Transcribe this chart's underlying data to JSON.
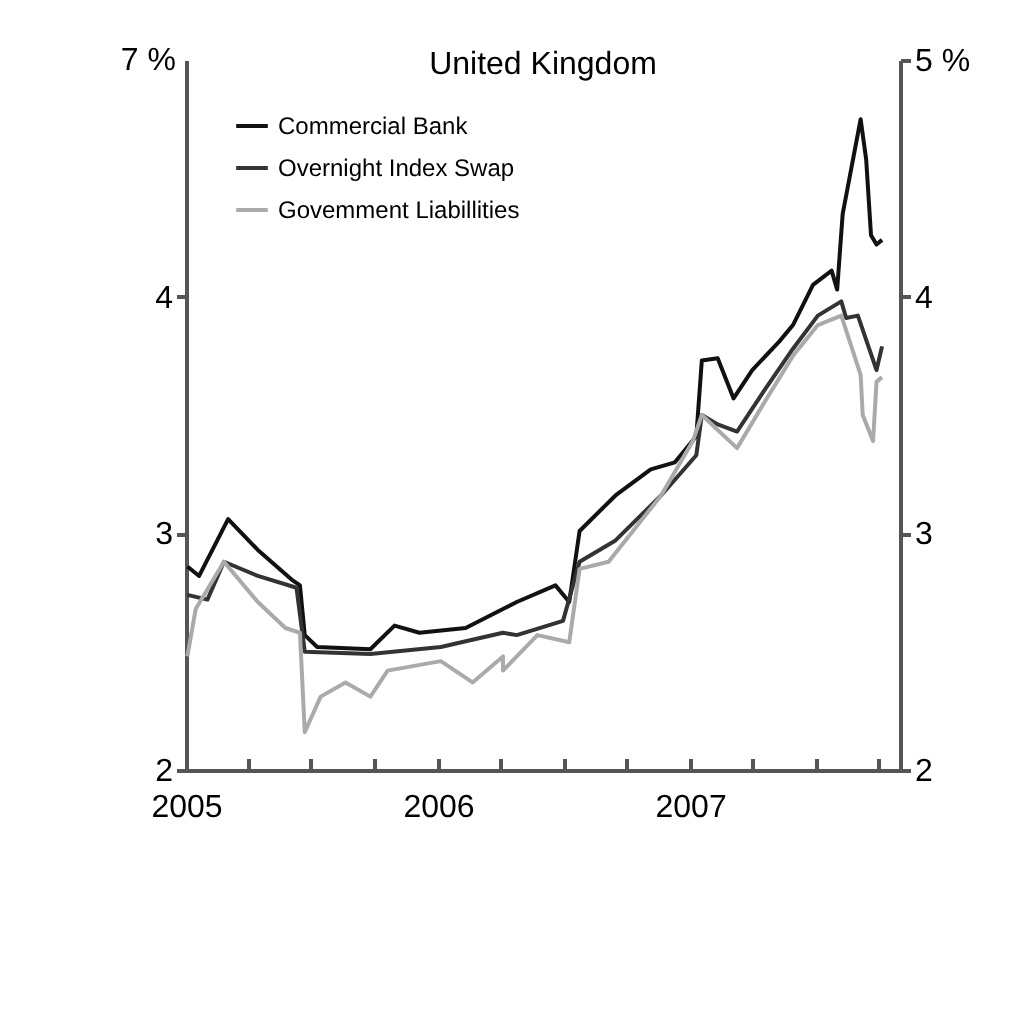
{
  "chart_data": {
    "type": "line",
    "title": "United Kingdom",
    "xlim": [
      "2005-01-01",
      "2007-11-01"
    ],
    "xticks": [
      {
        "value": "2005-01-01",
        "label": "2005"
      },
      {
        "value": "2005-04-01",
        "label": null
      },
      {
        "value": "2005-07-01",
        "label": null
      },
      {
        "value": "2005-10-01",
        "label": null
      },
      {
        "value": "2006-01-01",
        "label": "2006"
      },
      {
        "value": "2006-04-01",
        "label": null
      },
      {
        "value": "2006-07-01",
        "label": null
      },
      {
        "value": "2006-10-01",
        "label": null
      },
      {
        "value": "2007-01-01",
        "label": "2007"
      },
      {
        "value": "2007-04-01",
        "label": null
      },
      {
        "value": "2007-07-01",
        "label": null
      },
      {
        "value": "2007-10-01",
        "label": null
      }
    ],
    "ylim": [
      2,
      5
    ],
    "yticks": [
      2,
      3,
      4
    ],
    "annotations": [
      "7 %"
    ],
    "y2lim": [
      2,
      5
    ],
    "y2ticks": [
      2,
      3,
      4,
      {
        "value": 5,
        "label": "5 %"
      }
    ],
    "grid": false,
    "legend": "top left",
    "series": [
      {
        "name": "Commercial Bank",
        "color": "#111111",
        "x": [
          "2005-01-03",
          "2005-01-20",
          "2005-03-03",
          "2005-04-15",
          "2005-06-05",
          "2005-06-15",
          "2005-06-22",
          "2005-07-10",
          "2005-09-25",
          "2005-10-30",
          "2005-12-05",
          "2006-02-10",
          "2006-04-05",
          "2006-04-25",
          "2006-06-20",
          "2006-07-10",
          "2006-07-25",
          "2006-09-15",
          "2006-11-05",
          "2006-12-10",
          "2007-01-10",
          "2007-01-18",
          "2007-02-10",
          "2007-03-05",
          "2007-04-01",
          "2007-05-10",
          "2007-05-30",
          "2007-06-28",
          "2007-07-25",
          "2007-08-02",
          "2007-08-10",
          "2007-09-05",
          "2007-09-13",
          "2007-09-20",
          "2007-09-28",
          "2007-10-06"
        ],
        "values": [
          2.86,
          2.82,
          3.06,
          2.93,
          2.8,
          2.78,
          2.57,
          2.52,
          2.51,
          2.61,
          2.58,
          2.6,
          2.68,
          2.71,
          2.78,
          2.71,
          3.01,
          3.16,
          3.27,
          3.3,
          3.41,
          3.73,
          3.74,
          3.57,
          3.69,
          3.81,
          3.88,
          4.05,
          4.11,
          4.03,
          4.35,
          4.75,
          4.58,
          4.26,
          4.22,
          4.24
        ]
      },
      {
        "name": "Overnight Index Swap",
        "color": "#333333",
        "x": [
          "2005-01-03",
          "2005-02-01",
          "2005-02-25",
          "2005-04-15",
          "2005-06-10",
          "2005-06-22",
          "2005-09-25",
          "2006-01-05",
          "2006-04-05",
          "2006-04-25",
          "2006-07-01",
          "2006-07-25",
          "2006-09-15",
          "2006-11-20",
          "2007-01-10",
          "2007-01-18",
          "2007-02-10",
          "2007-03-10",
          "2007-04-20",
          "2007-05-30",
          "2007-07-05",
          "2007-08-08",
          "2007-08-15",
          "2007-09-01",
          "2007-09-28",
          "2007-10-06"
        ],
        "values": [
          2.74,
          2.72,
          2.88,
          2.82,
          2.77,
          2.5,
          2.49,
          2.52,
          2.58,
          2.57,
          2.63,
          2.88,
          2.97,
          3.16,
          3.33,
          3.5,
          3.46,
          3.43,
          3.61,
          3.78,
          3.92,
          3.98,
          3.91,
          3.92,
          3.69,
          3.79
        ]
      },
      {
        "name": "Govemment Liabillities",
        "color": "#aaaaaa",
        "x": [
          "2005-01-03",
          "2005-01-15",
          "2005-02-25",
          "2005-04-15",
          "2005-05-25",
          "2005-06-15",
          "2005-06-22",
          "2005-07-15",
          "2005-08-20",
          "2005-09-25",
          "2005-10-20",
          "2006-01-05",
          "2006-02-20",
          "2006-04-05",
          "2006-04-05",
          "2006-05-25",
          "2006-07-10",
          "2006-07-25",
          "2006-09-05",
          "2006-11-20",
          "2007-01-05",
          "2007-01-18",
          "2007-03-10",
          "2007-04-20",
          "2007-05-30",
          "2007-07-05",
          "2007-08-08",
          "2007-09-05",
          "2007-09-08",
          "2007-09-23",
          "2007-09-28",
          "2007-10-06"
        ],
        "values": [
          2.48,
          2.68,
          2.88,
          2.71,
          2.6,
          2.58,
          2.16,
          2.31,
          2.37,
          2.31,
          2.42,
          2.46,
          2.37,
          2.48,
          2.42,
          2.57,
          2.54,
          2.85,
          2.88,
          3.16,
          3.39,
          3.5,
          3.36,
          3.56,
          3.75,
          3.88,
          3.92,
          3.67,
          3.5,
          3.39,
          3.64,
          3.66
        ]
      }
    ]
  }
}
